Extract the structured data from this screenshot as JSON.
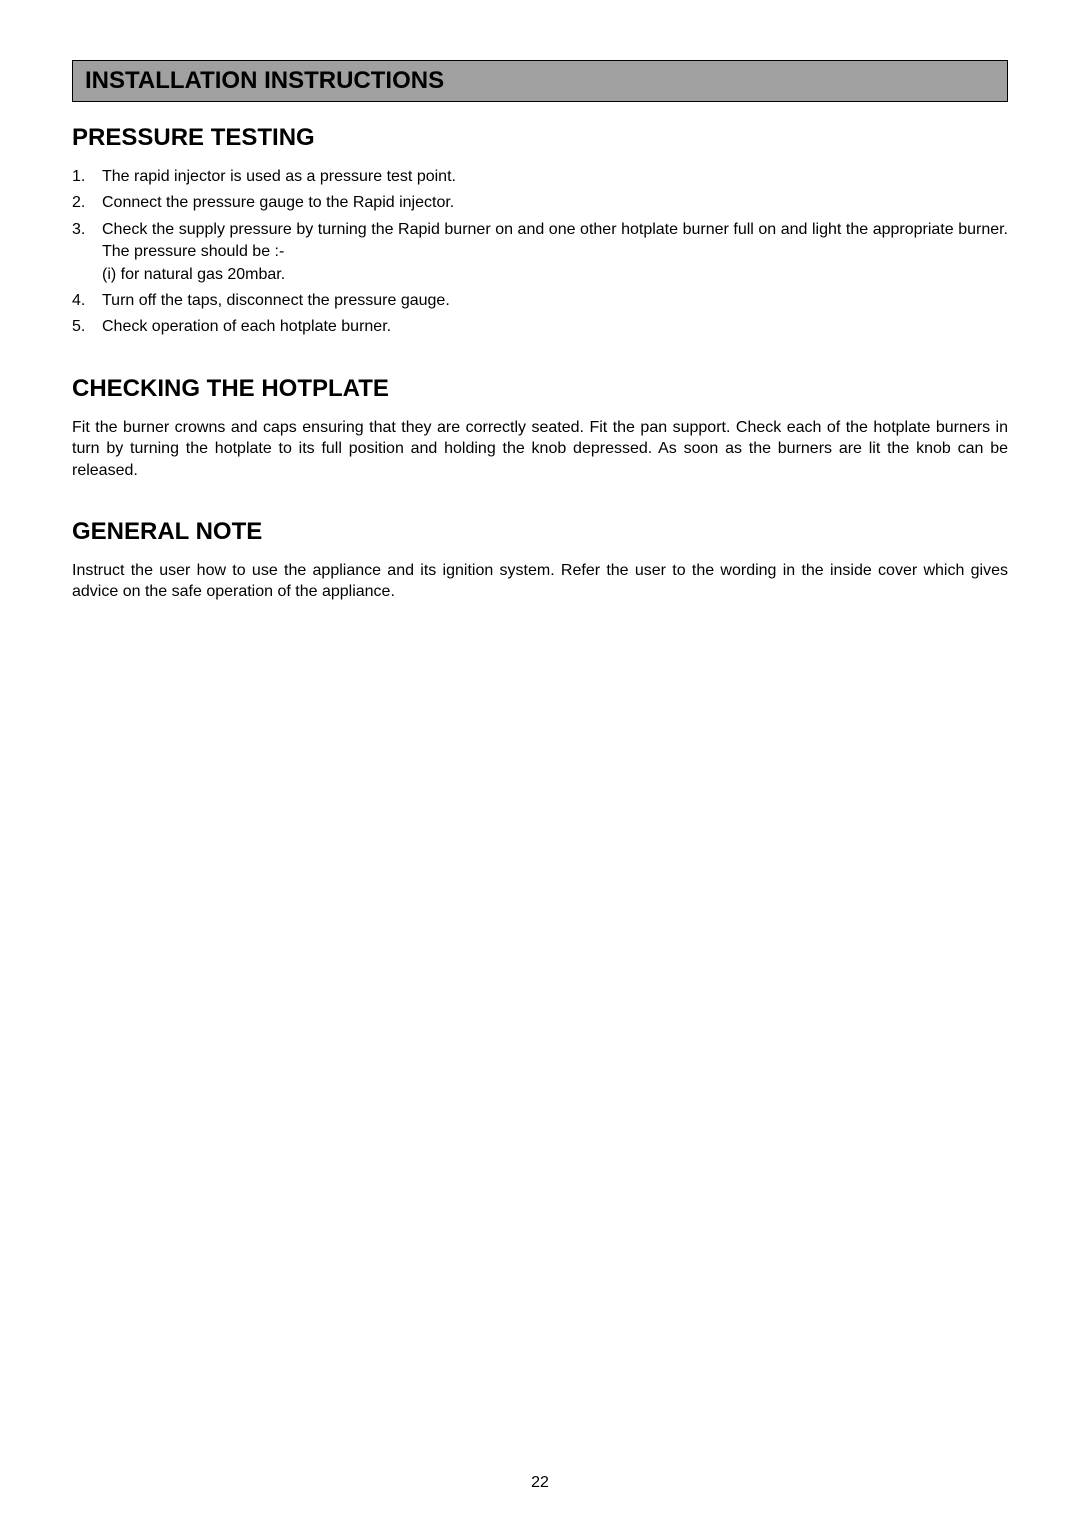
{
  "banner": {
    "title": "INSTALLATION INSTRUCTIONS",
    "backgroundColor": "#a0a0a0",
    "borderColor": "#000000",
    "textColor": "#000000",
    "fontSize": 24,
    "fontWeight": "bold"
  },
  "sections": {
    "pressureTesting": {
      "heading": "PRESSURE TESTING",
      "items": {
        "i1": {
          "num": "1.",
          "text": "The rapid injector is used as a pressure test point."
        },
        "i2": {
          "num": "2.",
          "text": "Connect the pressure gauge to the Rapid injector."
        },
        "i3": {
          "num": "3.",
          "text": "Check the supply pressure by turning the Rapid burner on and one other hotplate burner full on and light the appropriate burner. The pressure should be :-",
          "sub": {
            "s1": "(i)   for natural gas 20mbar."
          }
        },
        "i4": {
          "num": "4.",
          "text": "Turn off the taps, disconnect the pressure gauge."
        },
        "i5": {
          "num": "5.",
          "text": "Check operation of each hotplate burner."
        }
      }
    },
    "checkingHotplate": {
      "heading": "CHECKING THE HOTPLATE",
      "paragraph": "Fit the burner crowns and caps ensuring that they are correctly seated.  Fit the pan support.  Check each of the hotplate burners in turn by turning the hotplate to its full position and holding the knob depressed.  As soon as the burners are lit the knob can be released."
    },
    "generalNote": {
      "heading": "GENERAL NOTE",
      "paragraph": "Instruct the user how to use the appliance and its ignition system.  Refer the user to the wording in the inside cover which gives advice on the safe operation of the appliance."
    }
  },
  "pageNumber": "22",
  "styles": {
    "bodyFont": "Arial",
    "headingFontSize": 24,
    "bodyFontSize": 16,
    "textColor": "#000000",
    "backgroundColor": "#ffffff"
  }
}
